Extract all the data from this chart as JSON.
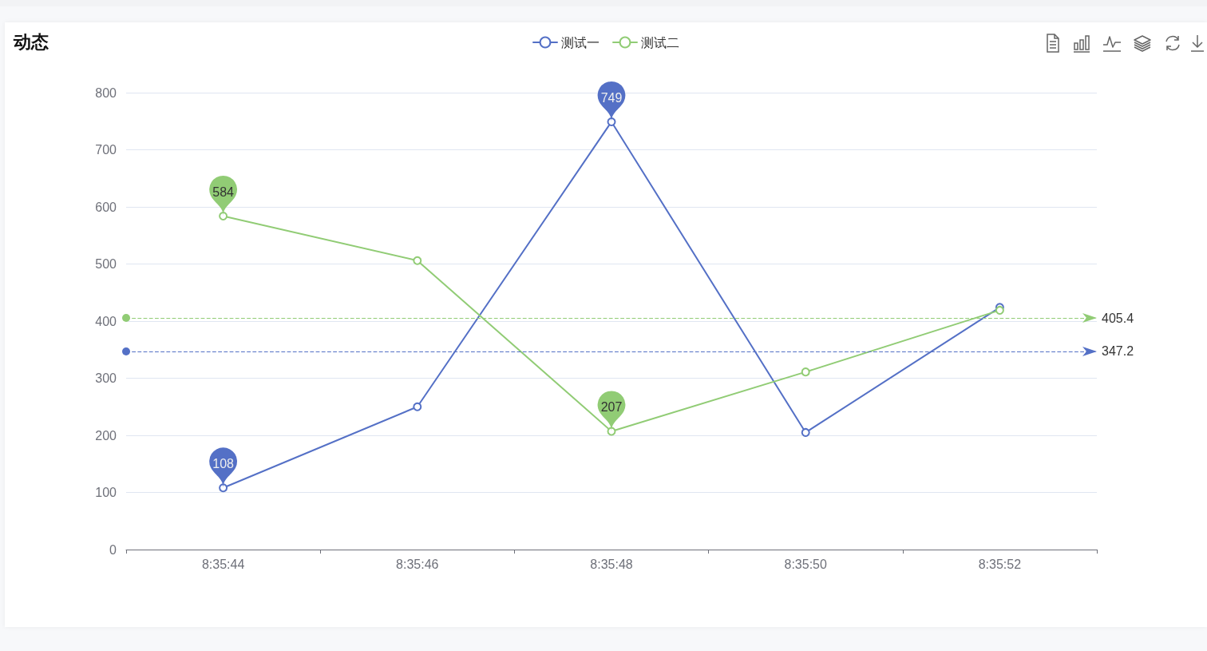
{
  "chart_data": {
    "type": "line",
    "title": "动态",
    "categories": [
      "8:35:44",
      "8:35:46",
      "8:35:48",
      "8:35:50",
      "8:35:52"
    ],
    "series": [
      {
        "name": "测试一",
        "color": "#5470c6",
        "values": [
          108,
          250,
          749,
          205,
          424
        ],
        "value_labels": [
          "108",
          null,
          "749",
          null,
          null
        ]
      },
      {
        "name": "测试二",
        "color": "#91cc75",
        "values": [
          584,
          506,
          207,
          311,
          419
        ],
        "value_labels": [
          "584",
          null,
          "207",
          null,
          null
        ]
      }
    ],
    "ylim": [
      0,
      800
    ],
    "yticks": [
      0,
      100,
      200,
      300,
      400,
      500,
      600,
      700,
      800
    ],
    "grid": "y",
    "legend": "top",
    "marker": "circle",
    "ref_lines": [
      {
        "axis": "y",
        "value": 405.4,
        "label": "405.4",
        "color": "#91cc75",
        "line_style": "dashed"
      },
      {
        "axis": "y",
        "value": 347.2,
        "label": "347.2",
        "color": "#5470c6",
        "line_style": "dashed"
      }
    ]
  }
}
